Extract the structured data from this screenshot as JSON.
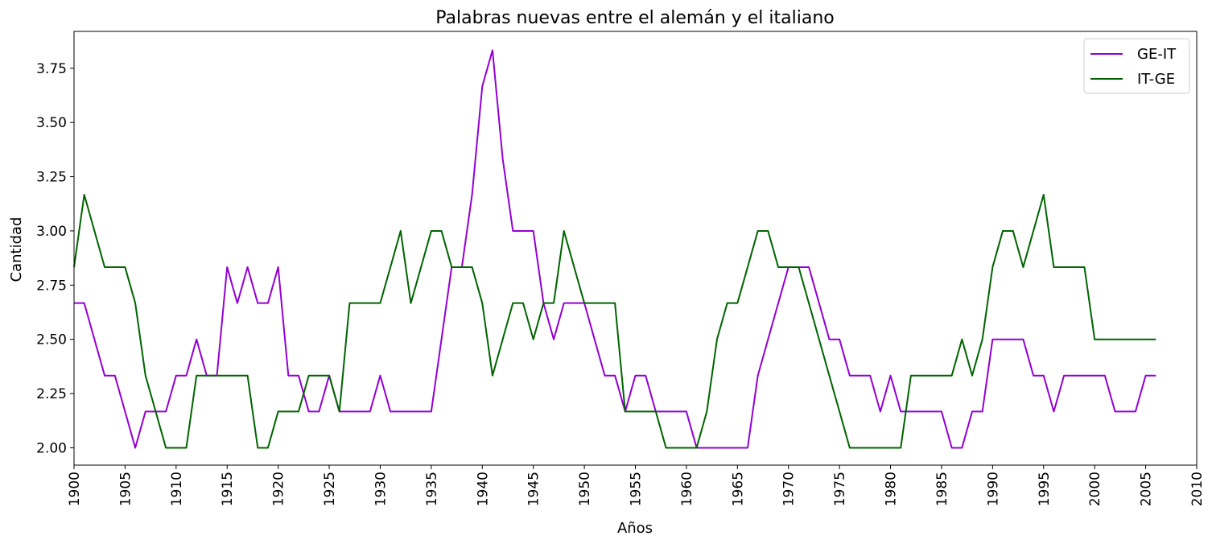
{
  "chart_data": {
    "type": "line",
    "title": "Palabras nuevas entre el alemán y el italiano",
    "xlabel": "Años",
    "ylabel": "Cantidad",
    "xlim": [
      1900,
      2010
    ],
    "ylim": [
      1.92,
      3.92
    ],
    "xticks": [
      1900,
      1905,
      1910,
      1915,
      1920,
      1925,
      1930,
      1935,
      1940,
      1945,
      1950,
      1955,
      1960,
      1965,
      1970,
      1975,
      1980,
      1985,
      1990,
      1995,
      2000,
      2005,
      2010
    ],
    "yticks": [
      2.0,
      2.25,
      2.5,
      2.75,
      3.0,
      3.25,
      3.5,
      3.75
    ],
    "ytick_labels": [
      "2.00",
      "2.25",
      "2.50",
      "2.75",
      "3.00",
      "3.25",
      "3.50",
      "3.75"
    ],
    "grid": false,
    "legend_position": "top-right",
    "x": [
      1900,
      1901,
      1902,
      1903,
      1904,
      1905,
      1906,
      1907,
      1908,
      1909,
      1910,
      1911,
      1912,
      1913,
      1914,
      1915,
      1916,
      1917,
      1918,
      1919,
      1920,
      1921,
      1922,
      1923,
      1924,
      1925,
      1926,
      1927,
      1928,
      1929,
      1930,
      1931,
      1932,
      1933,
      1934,
      1935,
      1936,
      1937,
      1938,
      1939,
      1940,
      1941,
      1942,
      1943,
      1944,
      1945,
      1946,
      1947,
      1948,
      1949,
      1950,
      1951,
      1952,
      1953,
      1954,
      1955,
      1956,
      1957,
      1958,
      1959,
      1960,
      1961,
      1962,
      1963,
      1964,
      1965,
      1966,
      1967,
      1968,
      1969,
      1970,
      1971,
      1972,
      1973,
      1974,
      1975,
      1976,
      1977,
      1978,
      1979,
      1980,
      1981,
      1982,
      1983,
      1984,
      1985,
      1986,
      1987,
      1988,
      1989,
      1990,
      1991,
      1992,
      1993,
      1994,
      1995,
      1996,
      1997,
      1998,
      1999,
      2000,
      2001,
      2002,
      2003,
      2004,
      2005,
      2006
    ],
    "series": [
      {
        "name": "GE-IT",
        "color": "#9400d3",
        "values": [
          2.667,
          2.667,
          2.5,
          2.333,
          2.333,
          2.167,
          2.0,
          2.167,
          2.167,
          2.167,
          2.333,
          2.333,
          2.5,
          2.333,
          2.333,
          2.833,
          2.667,
          2.833,
          2.667,
          2.667,
          2.833,
          2.333,
          2.333,
          2.167,
          2.167,
          2.333,
          2.167,
          2.167,
          2.167,
          2.167,
          2.333,
          2.167,
          2.167,
          2.167,
          2.167,
          2.167,
          2.5,
          2.833,
          2.833,
          3.167,
          3.667,
          3.833,
          3.333,
          3.0,
          3.0,
          3.0,
          2.667,
          2.5,
          2.667,
          2.667,
          2.667,
          2.5,
          2.333,
          2.333,
          2.167,
          2.333,
          2.333,
          2.167,
          2.167,
          2.167,
          2.167,
          2.0,
          2.0,
          2.0,
          2.0,
          2.0,
          2.0,
          2.333,
          2.5,
          2.667,
          2.833,
          2.833,
          2.833,
          2.667,
          2.5,
          2.5,
          2.333,
          2.333,
          2.333,
          2.167,
          2.333,
          2.167,
          2.167,
          2.167,
          2.167,
          2.167,
          2.0,
          2.0,
          2.167,
          2.167,
          2.5,
          2.5,
          2.5,
          2.5,
          2.333,
          2.333,
          2.167,
          2.333,
          2.333,
          2.333,
          2.333,
          2.333,
          2.167,
          2.167,
          2.167,
          2.333,
          2.333
        ]
      },
      {
        "name": "IT-GE",
        "color": "#006400",
        "values": [
          2.833,
          3.167,
          3.0,
          2.833,
          2.833,
          2.833,
          2.667,
          2.333,
          2.167,
          2.0,
          2.0,
          2.0,
          2.333,
          2.333,
          2.333,
          2.333,
          2.333,
          2.333,
          2.0,
          2.0,
          2.167,
          2.167,
          2.167,
          2.333,
          2.333,
          2.333,
          2.167,
          2.667,
          2.667,
          2.667,
          2.667,
          2.833,
          3.0,
          2.667,
          2.833,
          3.0,
          3.0,
          2.833,
          2.833,
          2.833,
          2.667,
          2.333,
          2.5,
          2.667,
          2.667,
          2.5,
          2.667,
          2.667,
          3.0,
          2.833,
          2.667,
          2.667,
          2.667,
          2.667,
          2.167,
          2.167,
          2.167,
          2.167,
          2.0,
          2.0,
          2.0,
          2.0,
          2.167,
          2.5,
          2.667,
          2.667,
          2.833,
          3.0,
          3.0,
          2.833,
          2.833,
          2.833,
          2.667,
          2.5,
          2.333,
          2.167,
          2.0,
          2.0,
          2.0,
          2.0,
          2.0,
          2.0,
          2.333,
          2.333,
          2.333,
          2.333,
          2.333,
          2.5,
          2.333,
          2.5,
          2.833,
          3.0,
          3.0,
          2.833,
          3.0,
          3.167,
          2.833,
          2.833,
          2.833,
          2.833,
          2.5,
          2.5,
          2.5,
          2.5,
          2.5,
          2.5,
          2.5
        ]
      }
    ]
  }
}
